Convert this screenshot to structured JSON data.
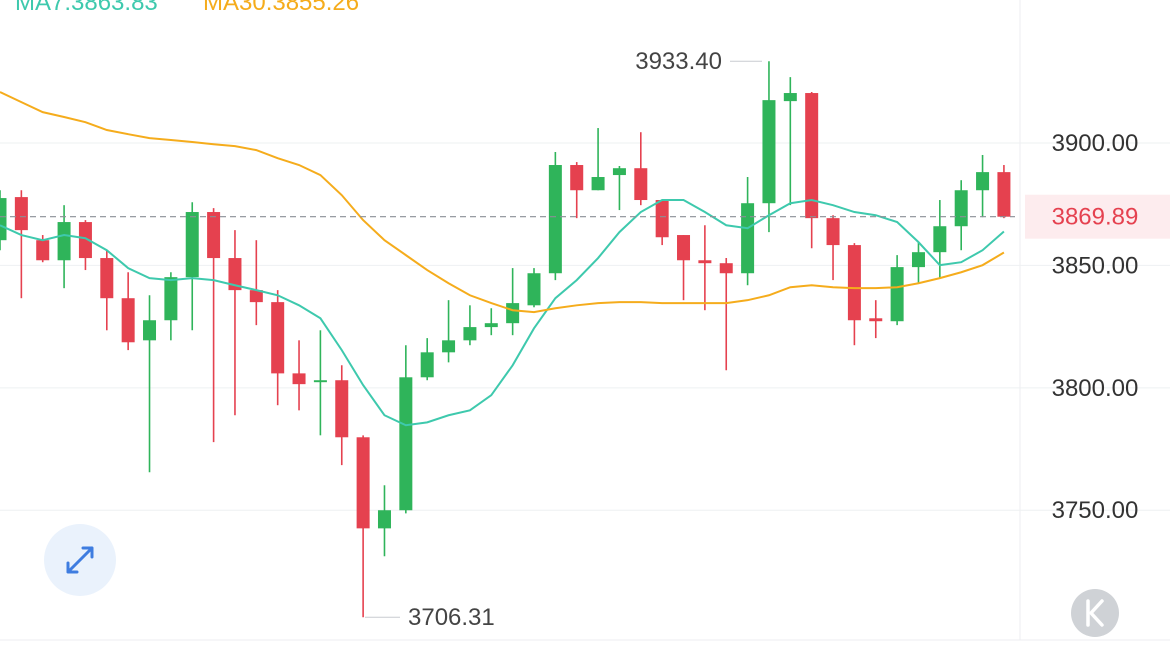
{
  "chart_data": {
    "type": "candlestick",
    "open": [
      3860.3,
      3877.9,
      3860.3,
      3852.1,
      3867.7,
      3853.0,
      3836.6,
      3819.4,
      3827.6,
      3845.2,
      3871.8,
      3853.0,
      3839.9,
      3835.0,
      3805.9,
      3802.3,
      3803.1,
      3779.8,
      3742.6,
      3750.0,
      3804.3,
      3814.5,
      3819.4,
      3824.8,
      3826.4,
      3833.7,
      3846.8,
      3891.0,
      3880.7,
      3886.9,
      3889.7,
      3876.7,
      3862.4,
      3852.1,
      3850.9,
      3846.8,
      3875.4,
      3917.1,
      3920.4,
      3869.3,
      3858.3,
      3828.4,
      3827.2,
      3849.3,
      3855.4,
      3866.0,
      3880.7,
      3888.1
    ],
    "high": [
      3880.7,
      3880.7,
      3862.4,
      3874.6,
      3868.5,
      3856.2,
      3847.2,
      3837.8,
      3847.2,
      3875.8,
      3873.4,
      3864.4,
      3860.3,
      3839.9,
      3819.4,
      3823.5,
      3809.2,
      3780.6,
      3760.2,
      3817.4,
      3820.3,
      3835.8,
      3833.7,
      3832.5,
      3848.9,
      3848.9,
      3896.3,
      3892.2,
      3906.1,
      3890.6,
      3904.4,
      3876.7,
      3862.4,
      3866.4,
      3853.0,
      3886.1,
      3933.4,
      3926.9,
      3920.8,
      3870.5,
      3859.1,
      3835.8,
      3854.2,
      3859.5,
      3876.7,
      3884.8,
      3895.1,
      3891.0
    ],
    "low": [
      3856.2,
      3836.6,
      3851.3,
      3840.7,
      3848.1,
      3823.5,
      3815.4,
      3765.5,
      3819.4,
      3823.5,
      3777.8,
      3788.8,
      3825.6,
      3792.9,
      3790.8,
      3780.6,
      3768.4,
      3706.31,
      3731.2,
      3748.7,
      3803.1,
      3810.4,
      3817.4,
      3821.5,
      3821.5,
      3832.9,
      3844.0,
      3869.3,
      3880.7,
      3872.6,
      3874.6,
      3858.3,
      3835.8,
      3831.7,
      3807.2,
      3841.9,
      3863.6,
      3874.6,
      3857.0,
      3844.0,
      3817.4,
      3820.3,
      3825.6,
      3842.7,
      3844.8,
      3856.2,
      3869.7,
      3869.3
    ],
    "close": [
      3877.5,
      3864.4,
      3852.1,
      3867.7,
      3853.0,
      3836.6,
      3818.6,
      3827.6,
      3845.2,
      3871.8,
      3853.0,
      3839.9,
      3835.0,
      3805.9,
      3801.5,
      3803.1,
      3779.8,
      3742.6,
      3750.0,
      3804.3,
      3814.5,
      3819.4,
      3824.8,
      3826.4,
      3834.6,
      3846.8,
      3891.0,
      3880.7,
      3886.1,
      3889.7,
      3876.7,
      3861.5,
      3852.1,
      3850.9,
      3846.8,
      3875.4,
      3917.5,
      3920.4,
      3869.3,
      3858.3,
      3827.6,
      3827.2,
      3849.3,
      3855.4,
      3866.0,
      3880.7,
      3888.1,
      3869.89
    ],
    "up_color": "#2fb45a",
    "down_color": "#e5414f",
    "series": [
      {
        "name": "MA7",
        "color": "#3ec9ad",
        "values": [
          3866.4,
          3862.4,
          3860.3,
          3862.4,
          3861.1,
          3856.2,
          3848.9,
          3844.8,
          3844.0,
          3844.8,
          3844.0,
          3841.9,
          3839.9,
          3837.8,
          3833.7,
          3828.4,
          3815.4,
          3801.1,
          3788.8,
          3784.7,
          3785.9,
          3788.8,
          3790.8,
          3797.0,
          3809.2,
          3824.3,
          3836.6,
          3844.0,
          3853.0,
          3863.6,
          3871.8,
          3876.7,
          3876.7,
          3871.8,
          3866.4,
          3865.2,
          3870.5,
          3875.4,
          3876.7,
          3874.6,
          3871.8,
          3870.5,
          3867.7,
          3859.5,
          3850.1,
          3851.3,
          3856.2,
          3863.83
        ]
      },
      {
        "name": "MA30",
        "color": "#f5ac1c",
        "values": [
          3920.8,
          3916.7,
          3912.6,
          3910.6,
          3908.5,
          3905.3,
          3903.6,
          3902.0,
          3901.2,
          3900.4,
          3899.5,
          3898.7,
          3897.1,
          3893.8,
          3891.0,
          3886.9,
          3878.7,
          3868.5,
          3860.3,
          3854.2,
          3848.1,
          3842.7,
          3837.8,
          3834.6,
          3831.7,
          3830.9,
          3832.5,
          3833.7,
          3834.6,
          3835.0,
          3835.0,
          3834.6,
          3834.6,
          3834.6,
          3834.6,
          3835.8,
          3837.8,
          3841.1,
          3841.9,
          3841.1,
          3840.7,
          3840.7,
          3841.1,
          3842.7,
          3844.8,
          3847.2,
          3850.1,
          3855.26
        ]
      }
    ],
    "legend": [
      "MA7:3863.83",
      "MA30:3855.26"
    ],
    "ylim": [
      3697,
      3958.4
    ],
    "yticks": [
      {
        "value": 3750,
        "label": "3750.00"
      },
      {
        "value": 3800,
        "label": "3800.00"
      },
      {
        "value": 3850,
        "label": "3850.00"
      },
      {
        "value": 3900,
        "label": "3900.00"
      }
    ],
    "grid": true,
    "last_price": 3869.89,
    "annotations": [
      {
        "value": 3933.4,
        "label": "3933.40"
      },
      {
        "value": 3706.31,
        "label": "3706.31"
      }
    ]
  }
}
